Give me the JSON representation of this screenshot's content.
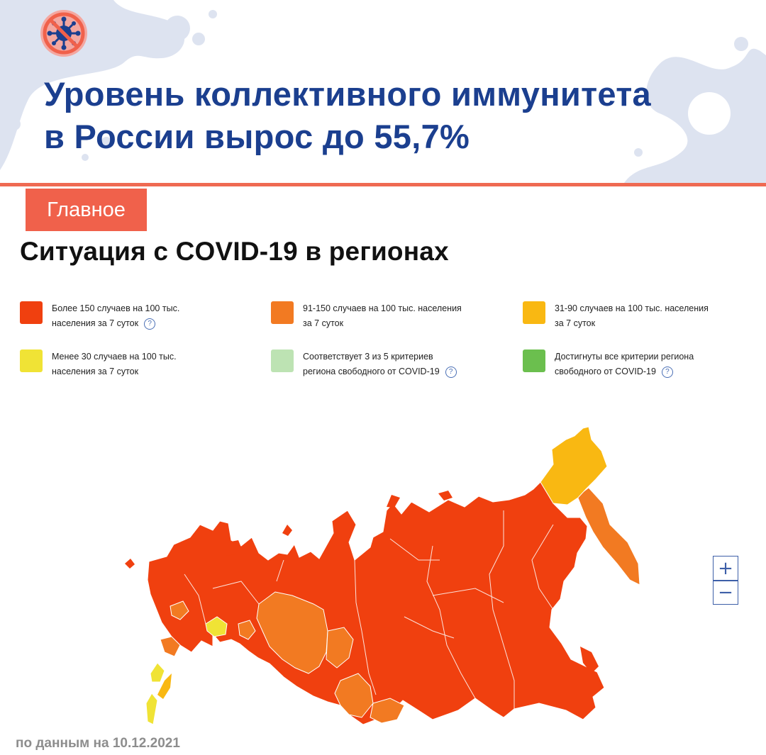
{
  "header": {
    "headline_line1": "Уровень коллективного иммунитета",
    "headline_line2": "в России вырос до 55,7%",
    "icon": "crossed-virus-icon"
  },
  "section_tag": "Главное",
  "map_title": "Ситуация с COVID-19 в регионах",
  "legend": [
    {
      "text": "Более 150 случаев на 100 тыс.\nнаселения за 7 суток",
      "color": "#f0400f",
      "help": true
    },
    {
      "text": "91-150 случаев на 100 тыс. населения\nза 7 суток",
      "color": "#f27a22",
      "help": false
    },
    {
      "text": "31-90 случаев на 100 тыс. населения\nза 7 суток",
      "color": "#f9b812",
      "help": false
    },
    {
      "text": "Менее 30 случаев на 100 тыс.\nнаселения за 7 суток",
      "color": "#f0e335",
      "help": false
    },
    {
      "text": "Соответствует 3 из 5 критериев\nрегиона свободного от COVID-19",
      "color": "#bde3b3",
      "help": true
    },
    {
      "text": "Достигнуты все критерии региона\nсвободного от COVID-19",
      "color": "#6bbf4e",
      "help": true
    }
  ],
  "help_glyph": "?",
  "zoom": {
    "in_label": "+",
    "out_label": "−"
  },
  "footnote": "по данным на 10.12.2021",
  "colors": {
    "brand_blue": "#1b3f8f",
    "accent_red": "#f0614b",
    "high": "#f0400f",
    "medium": "#f27a22",
    "low": "#f9b812",
    "very_low": "#f0e335"
  }
}
